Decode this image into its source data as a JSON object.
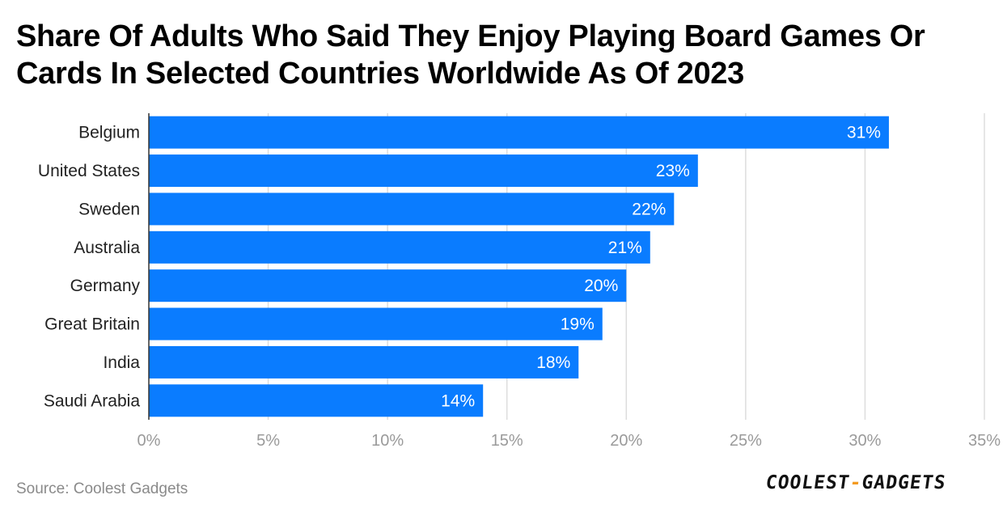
{
  "chart_data": {
    "type": "bar",
    "orientation": "horizontal",
    "title": "Share Of Adults Who Said They Enjoy Playing Board Games Or Cards In Selected Countries Worldwide As Of 2023",
    "categories": [
      "Belgium",
      "United States",
      "Sweden",
      "Australia",
      "Germany",
      "Great Britain",
      "India",
      "Saudi Arabia"
    ],
    "values": [
      31,
      23,
      22,
      21,
      20,
      19,
      18,
      14
    ],
    "value_labels": [
      "31%",
      "23%",
      "22%",
      "21%",
      "20%",
      "19%",
      "18%",
      "14%"
    ],
    "xlabel": "",
    "ylabel": "",
    "xlim": [
      0,
      35
    ],
    "x_ticks": [
      0,
      5,
      10,
      15,
      20,
      25,
      30,
      35
    ],
    "x_tick_labels": [
      "0%",
      "5%",
      "10%",
      "15%",
      "20%",
      "25%",
      "30%",
      "35%"
    ],
    "grid": true,
    "legend": "none"
  },
  "colors": {
    "bar": "#0a7cff",
    "grid": "#dddddd",
    "tick_text": "#9a9a9a",
    "category_text": "#222222",
    "value_text": "#ffffff"
  },
  "footer": {
    "source": "Source: Coolest Gadgets",
    "logo_left": "COOLEST",
    "logo_dash": "-",
    "logo_right": "GADGETS"
  }
}
